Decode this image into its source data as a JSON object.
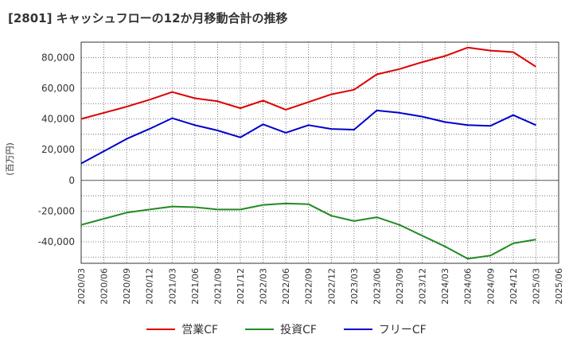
{
  "chart_data": {
    "type": "line",
    "title": "[2801]  キャッシュフローの12か月移動合計の推移",
    "ylabel": "(百万円)",
    "xlabel": "",
    "ylim": [
      -54000,
      90000
    ],
    "yticks": [
      80000,
      60000,
      40000,
      20000,
      0,
      -20000,
      -40000
    ],
    "ytick_labels": [
      "80,000",
      "60,000",
      "40,000",
      "20,000",
      "0",
      "-20,000",
      "-40,000"
    ],
    "x": [
      "2020/03",
      "2020/06",
      "2020/09",
      "2020/12",
      "2021/03",
      "2021/06",
      "2021/09",
      "2021/12",
      "2022/03",
      "2022/06",
      "2022/09",
      "2022/12",
      "2023/03",
      "2023/06",
      "2023/09",
      "2023/12",
      "2024/03",
      "2024/06",
      "2024/09",
      "2024/12",
      "2025/03",
      "2025/06"
    ],
    "grid": true,
    "legend_position": "bottom",
    "series": [
      {
        "name": "営業CF",
        "color": "#dd0000",
        "values": [
          40000,
          44000,
          48000,
          52500,
          57500,
          53500,
          51500,
          47000,
          52000,
          46000,
          51000,
          56000,
          59000,
          69000,
          72500,
          77000,
          81000,
          86500,
          84500,
          83500,
          74000,
          null
        ]
      },
      {
        "name": "投資CF",
        "color": "#228b22",
        "values": [
          -29000,
          -25000,
          -21000,
          -19000,
          -17000,
          -17500,
          -19000,
          -19000,
          -16000,
          -15000,
          -15500,
          -23000,
          -26500,
          -24000,
          -29000,
          -36000,
          -43000,
          -51000,
          -49000,
          -41000,
          -38500,
          null
        ]
      },
      {
        "name": "フリーCF",
        "color": "#0000cc",
        "values": [
          11000,
          19000,
          27000,
          33500,
          40500,
          36000,
          32500,
          28000,
          36500,
          31000,
          36000,
          33500,
          33000,
          45500,
          44000,
          41500,
          38000,
          36000,
          35500,
          42500,
          36000,
          null
        ]
      }
    ]
  }
}
